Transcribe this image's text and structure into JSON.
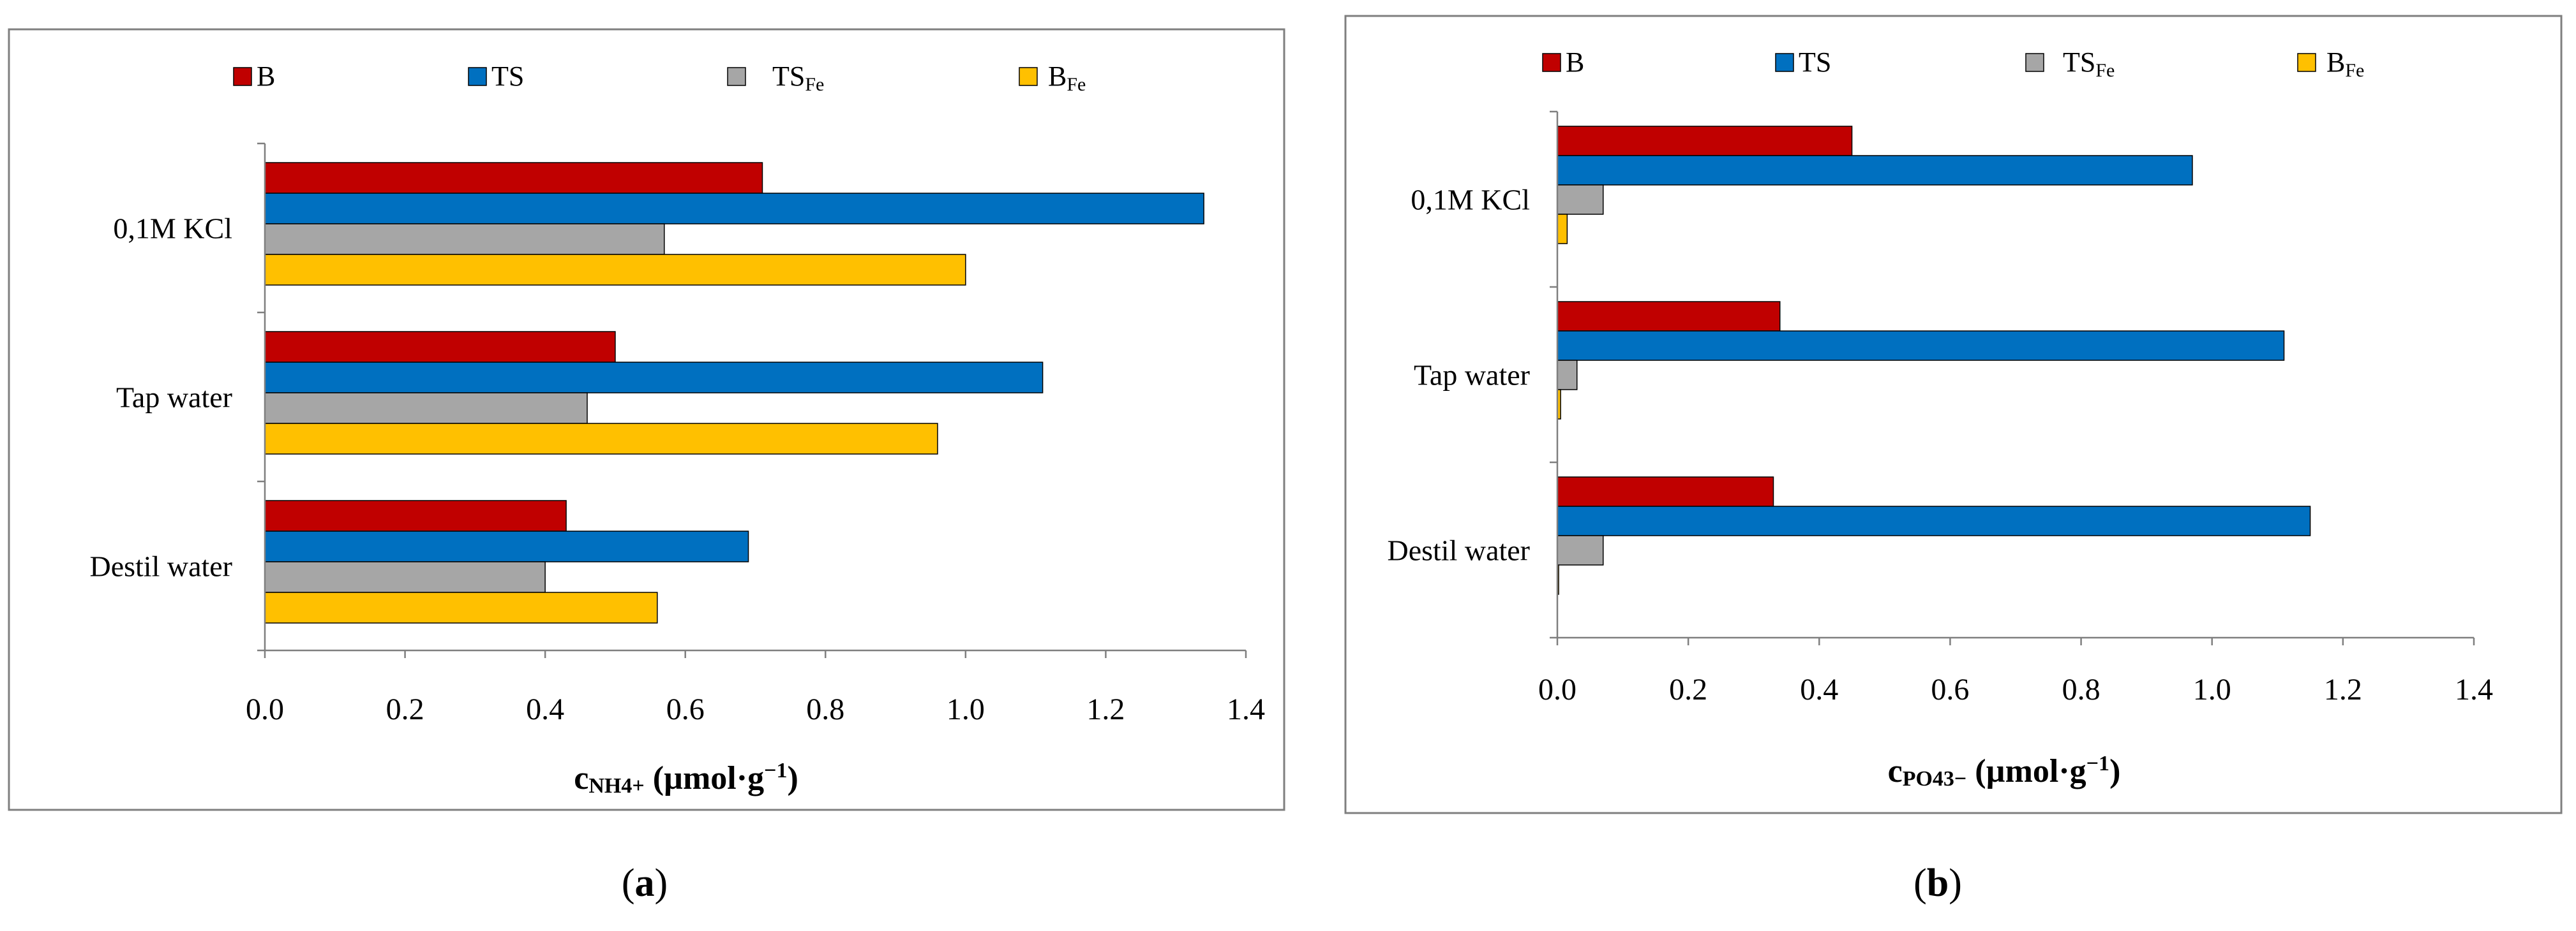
{
  "panels": [
    {
      "legend": [
        {
          "label": "B",
          "sub": "",
          "color": "#C00000"
        },
        {
          "label": "TS",
          "sub": "",
          "color": "#0070C0"
        },
        {
          "label": "TS",
          "sub": "Fe",
          "color": "#A6A6A6"
        },
        {
          "label": "B",
          "sub": "Fe",
          "color": "#FFC000"
        }
      ],
      "xlabel": {
        "main": "c",
        "sub": "NH4+",
        "unit": " (µmol·g",
        "sup": "−1",
        "close": ")"
      },
      "caption": {
        "open": "(",
        "letter": "a",
        "close": ")"
      }
    },
    {
      "legend": [
        {
          "label": "B",
          "sub": "",
          "color": "#C00000"
        },
        {
          "label": "TS",
          "sub": "",
          "color": "#0070C0"
        },
        {
          "label": "TS",
          "sub": "Fe",
          "color": "#A6A6A6"
        },
        {
          "label": "B",
          "sub": "Fe",
          "color": "#FFC000"
        }
      ],
      "xlabel": {
        "main": "c",
        "sub": "PO43−",
        "unit": " (µmol·g",
        "sup": "−1",
        "close": ")"
      },
      "caption": {
        "open": "(",
        "letter": "b",
        "close": ")"
      }
    }
  ],
  "chart_data": [
    {
      "type": "bar",
      "orientation": "horizontal",
      "categories": [
        "0,1M KCl",
        "Tap water",
        "Destil water"
      ],
      "series": [
        {
          "name": "B",
          "color": "#C00000",
          "values": [
            0.71,
            0.5,
            0.43
          ]
        },
        {
          "name": "TS",
          "color": "#0070C0",
          "values": [
            1.34,
            1.11,
            0.69
          ]
        },
        {
          "name": "TSFe",
          "color": "#A6A6A6",
          "values": [
            0.57,
            0.46,
            0.4
          ]
        },
        {
          "name": "BFe",
          "color": "#FFC000",
          "values": [
            1.0,
            0.96,
            0.56
          ]
        }
      ],
      "xlim": [
        0,
        1.4
      ],
      "xticks": [
        "0.0",
        "0.2",
        "0.4",
        "0.6",
        "0.8",
        "1.0",
        "1.2",
        "1.4"
      ],
      "xlabel": "cNH4+ (µmol·g−1)",
      "ylabel": "",
      "legend_position": "top",
      "grid": false
    },
    {
      "type": "bar",
      "orientation": "horizontal",
      "categories": [
        "0,1M KCl",
        "Tap water",
        "Destil water"
      ],
      "series": [
        {
          "name": "B",
          "color": "#C00000",
          "values": [
            0.45,
            0.34,
            0.33
          ]
        },
        {
          "name": "TS",
          "color": "#0070C0",
          "values": [
            0.97,
            1.11,
            1.15
          ]
        },
        {
          "name": "TSFe",
          "color": "#A6A6A6",
          "values": [
            0.07,
            0.03,
            0.07
          ]
        },
        {
          "name": "BFe",
          "color": "#FFC000",
          "values": [
            0.015,
            0.005,
            0.002
          ]
        }
      ],
      "xlim": [
        0,
        1.4
      ],
      "xticks": [
        "0.0",
        "0.2",
        "0.4",
        "0.6",
        "0.8",
        "1.0",
        "1.2",
        "1.4"
      ],
      "xlabel": "cPO43− (µmol·g−1)",
      "ylabel": "",
      "legend_position": "top",
      "grid": false
    }
  ]
}
